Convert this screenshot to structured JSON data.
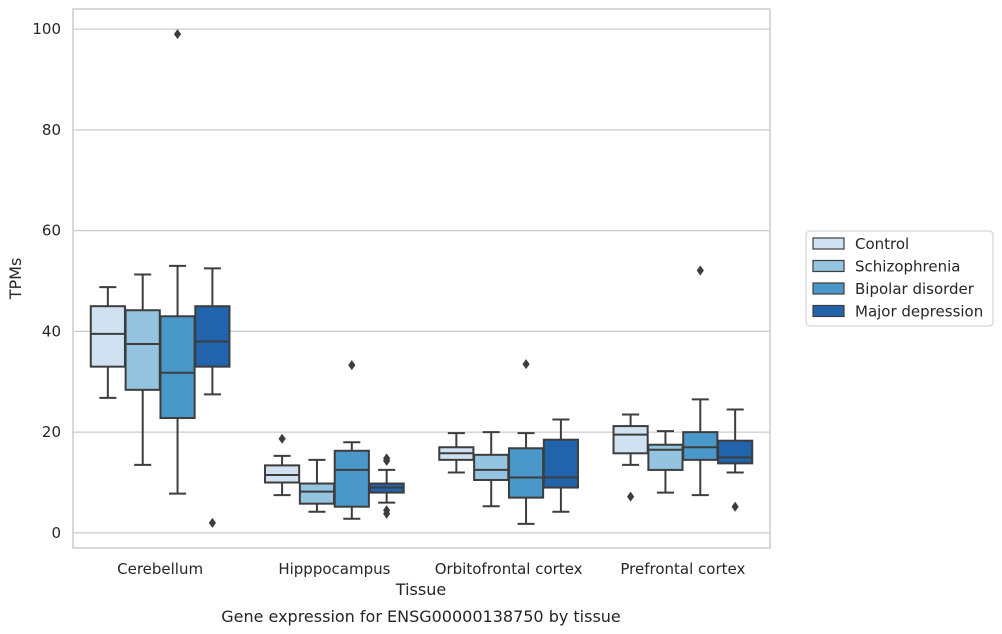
{
  "chart_data": {
    "type": "box",
    "xlabel": "Tissue",
    "ylabel": "TPMs",
    "caption": "Gene expression for ENSG00000138750 by tissue",
    "ylim": [
      -3,
      104
    ],
    "yticks": [
      0,
      20,
      40,
      60,
      80,
      100
    ],
    "grid": true,
    "legend_position": "right",
    "categories": [
      "Cerebellum",
      "Hipppocampus",
      "Orbitofrontal cortex",
      "Prefrontal cortex"
    ],
    "series": [
      {
        "name": "Control",
        "color": "#d0e1f2",
        "boxes": [
          {
            "whislo": 26.8,
            "q1": 33.0,
            "med": 39.5,
            "q3": 45.0,
            "whishi": 48.8,
            "fliers": []
          },
          {
            "whislo": 7.5,
            "q1": 10.0,
            "med": 11.5,
            "q3": 13.4,
            "whishi": 15.3,
            "fliers": [
              18.7
            ]
          },
          {
            "whislo": 12.0,
            "q1": 14.5,
            "med": 15.8,
            "q3": 17.0,
            "whishi": 19.8,
            "fliers": []
          },
          {
            "whislo": 13.5,
            "q1": 15.8,
            "med": 19.5,
            "q3": 21.2,
            "whishi": 23.5,
            "fliers": [
              7.2
            ]
          }
        ]
      },
      {
        "name": "Schizophrenia",
        "color": "#94c4df",
        "boxes": [
          {
            "whislo": 13.5,
            "q1": 28.4,
            "med": 37.5,
            "q3": 44.2,
            "whishi": 51.3,
            "fliers": []
          },
          {
            "whislo": 4.2,
            "q1": 5.8,
            "med": 8.2,
            "q3": 9.8,
            "whishi": 14.5,
            "fliers": []
          },
          {
            "whislo": 5.3,
            "q1": 10.5,
            "med": 12.5,
            "q3": 15.5,
            "whishi": 20.0,
            "fliers": []
          },
          {
            "whislo": 8.0,
            "q1": 12.5,
            "med": 16.5,
            "q3": 17.5,
            "whishi": 20.2,
            "fliers": []
          }
        ]
      },
      {
        "name": "Bipolar disorder",
        "color": "#4a98c9",
        "boxes": [
          {
            "whislo": 7.8,
            "q1": 22.8,
            "med": 31.8,
            "q3": 43.0,
            "whishi": 53.0,
            "fliers": [
              99.0
            ]
          },
          {
            "whislo": 2.8,
            "q1": 5.2,
            "med": 12.5,
            "q3": 16.3,
            "whishi": 18.0,
            "fliers": [
              33.3
            ]
          },
          {
            "whislo": 1.8,
            "q1": 7.0,
            "med": 11.0,
            "q3": 16.8,
            "whishi": 19.8,
            "fliers": [
              33.5
            ]
          },
          {
            "whislo": 7.5,
            "q1": 14.5,
            "med": 17.0,
            "q3": 20.0,
            "whishi": 26.5,
            "fliers": [
              52.1
            ]
          }
        ]
      },
      {
        "name": "Major depression",
        "color": "#2164ab",
        "boxes": [
          {
            "whislo": 27.5,
            "q1": 33.0,
            "med": 38.0,
            "q3": 45.0,
            "whishi": 52.5,
            "fliers": [
              2.0
            ]
          },
          {
            "whislo": 6.0,
            "q1": 8.0,
            "med": 9.0,
            "q3": 9.8,
            "whishi": 12.5,
            "fliers": [
              14.8,
              14.3,
              4.5,
              3.8
            ]
          },
          {
            "whislo": 4.2,
            "q1": 9.0,
            "med": 11.0,
            "q3": 18.5,
            "whishi": 22.5,
            "fliers": []
          },
          {
            "whislo": 12.0,
            "q1": 13.8,
            "med": 15.0,
            "q3": 18.3,
            "whishi": 24.5,
            "fliers": [
              5.2
            ]
          }
        ]
      }
    ]
  }
}
